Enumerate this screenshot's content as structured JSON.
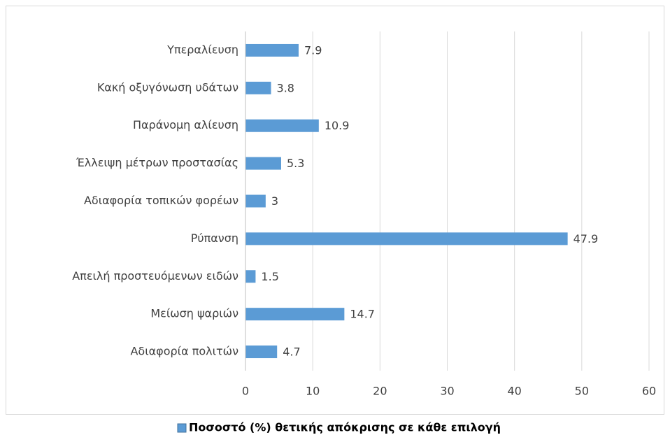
{
  "chart_data": {
    "type": "bar",
    "orientation": "horizontal",
    "categories": [
      "Υπεραλίευση",
      "Κακή οξυγόνωση υδάτων",
      "Παράνομη αλίευση",
      "Έλλειψη μέτρων προστασίας",
      "Αδιαφορία τοπικών φορέων",
      "Ρύπανση",
      "Απειλή προστευόμενων ειδών",
      "Μείωση ψαριών",
      "Αδιαφορία πολιτών"
    ],
    "series": [
      {
        "name": "Ποσοστό (%) θετικής απόκρισης σε κάθε επιλογή",
        "color": "#5b9bd5",
        "values": [
          7.9,
          3.8,
          10.9,
          5.3,
          3,
          47.9,
          1.5,
          14.7,
          4.7
        ]
      }
    ],
    "xlim": [
      0,
      60
    ],
    "xticks": [
      0,
      10,
      20,
      30,
      40,
      50,
      60
    ],
    "grid": true,
    "legend": "bottom"
  }
}
